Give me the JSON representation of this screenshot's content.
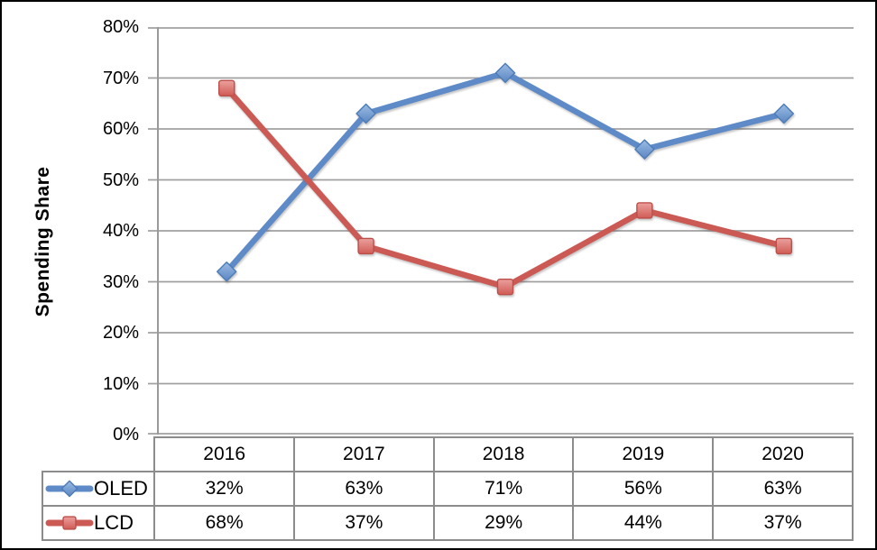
{
  "chart_data": {
    "type": "line",
    "title": "",
    "xlabel": "",
    "ylabel": "Spending Share",
    "categories": [
      "2016",
      "2017",
      "2018",
      "2019",
      "2020"
    ],
    "series": [
      {
        "name": "OLED",
        "values": [
          32,
          63,
          71,
          56,
          63
        ],
        "labels": [
          "32%",
          "63%",
          "71%",
          "56%",
          "63%"
        ],
        "marker": "diamond",
        "line_color": "#5E8AC7",
        "marker_fill_light": "#9CBCE4",
        "marker_fill_dark": "#5A86C2",
        "marker_stroke": "#4C7CB8"
      },
      {
        "name": "LCD",
        "values": [
          68,
          37,
          29,
          44,
          37
        ],
        "labels": [
          "68%",
          "37%",
          "29%",
          "44%",
          "37%"
        ],
        "marker": "square",
        "line_color": "#CB5A55",
        "marker_fill_light": "#EBA19E",
        "marker_fill_dark": "#D05B55",
        "marker_stroke": "#BC4F4A"
      }
    ],
    "y_ticks": [
      "0%",
      "10%",
      "20%",
      "30%",
      "40%",
      "50%",
      "60%",
      "70%",
      "80%"
    ],
    "ylim": [
      0,
      80
    ],
    "y_tick_step": 10,
    "grid": true,
    "legend_position": "table-rows-left",
    "data_table_shown": true
  },
  "style_colors": {
    "grid_color": "#A0A0A0",
    "axis_color": "#9A9A9A",
    "table_border_color": "#8C8C8C",
    "frame_border_color": "#000000",
    "background": "#FFFFFF",
    "text_color": "#000000"
  }
}
